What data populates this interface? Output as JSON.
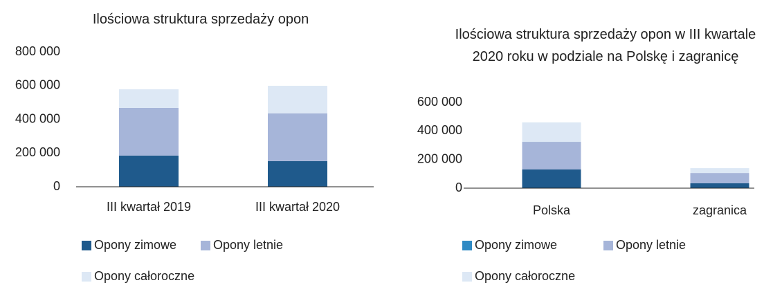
{
  "chart_data": [
    {
      "type": "stacked_bar",
      "title": "Ilościowa struktura sprzedaży  opon",
      "categories": [
        "III kwartał 2019",
        "III kwartał 2020"
      ],
      "series": [
        {
          "name": "Opony zimowe",
          "color": "#1f5a8c",
          "values": [
            185000,
            152000
          ]
        },
        {
          "name": "Opony letnie",
          "color": "#a6b5d9",
          "values": [
            283000,
            283000
          ]
        },
        {
          "name": "Opony całoroczne",
          "color": "#dde8f5",
          "values": [
            110000,
            164000
          ]
        }
      ],
      "ylim": [
        0,
        800000
      ],
      "yticks": [
        0,
        {
          "value": 200000,
          "label": "200 000"
        },
        {
          "value": 400000,
          "label": "400 000"
        },
        {
          "value": 600000,
          "label": "600 000"
        },
        {
          "value": 800000,
          "label": "800 000"
        }
      ],
      "grid": false,
      "legend": "bottom"
    },
    {
      "type": "stacked_bar",
      "title": "Ilościowa struktura sprzedaży  opon w III kwartale 2020 roku w podziale na Polskę i zagranicę",
      "categories": [
        "Polska",
        "zagranica"
      ],
      "series": [
        {
          "name": "Opony zimowe",
          "color": "#1f5a8c",
          "legend_color": "#2f8ac4",
          "values": [
            131000,
            34000
          ]
        },
        {
          "name": "Opony letnie",
          "color": "#a6b5d9",
          "values": [
            193000,
            72000
          ]
        },
        {
          "name": "Opony całoroczne",
          "color": "#dde8f5",
          "values": [
            136000,
            34000
          ]
        }
      ],
      "ylim": [
        0,
        600000
      ],
      "yticks": [
        0,
        {
          "value": 200000,
          "label": "200 000"
        },
        {
          "value": 400000,
          "label": "400 000"
        },
        {
          "value": 600000,
          "label": "600 000"
        }
      ],
      "grid": false,
      "legend": "bottom"
    }
  ]
}
